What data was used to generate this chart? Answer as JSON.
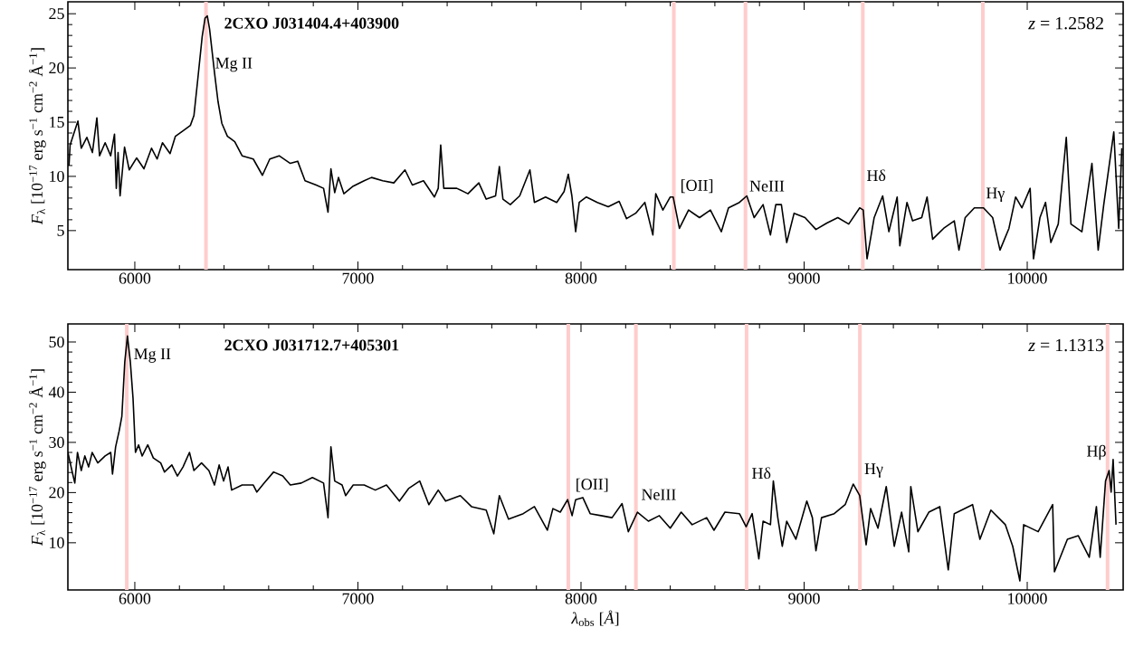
{
  "chart_data": [
    {
      "type": "line",
      "title": "2CXO J031404.4+403900",
      "ylabel": "*F*$_{λ}$ [10$^{−17}$ erg s$^{−1}$ cm$^{−2}$ Å$^{−1}$]",
      "color": "#000000",
      "x": [
        5705,
        5710,
        5745,
        5760,
        5785,
        5810,
        5830,
        5842,
        5867,
        5892,
        5909,
        5917,
        5925,
        5934,
        5954,
        5975,
        6008,
        6041,
        6075,
        6100,
        6124,
        6158,
        6182,
        6216,
        6249,
        6265,
        6282,
        6302,
        6315,
        6325,
        6335,
        6357,
        6373,
        6390,
        6415,
        6448,
        6481,
        6531,
        6572,
        6605,
        6647,
        6697,
        6730,
        6763,
        6813,
        6846,
        6866,
        6879,
        6896,
        6913,
        6937,
        6979,
        7028,
        7061,
        7111,
        7161,
        7211,
        7244,
        7294,
        7343,
        7360,
        7371,
        7385,
        7443,
        7493,
        7542,
        7575,
        7617,
        7634,
        7650,
        7683,
        7725,
        7771,
        7791,
        7841,
        7891,
        7924,
        7943,
        7959,
        7976,
        7992,
        8024,
        8073,
        8122,
        8171,
        8204,
        8245,
        8286,
        8322,
        8335,
        8367,
        8400,
        8413,
        8441,
        8482,
        8531,
        8580,
        8629,
        8661,
        8710,
        8743,
        8776,
        8816,
        8849,
        8873,
        8898,
        8922,
        8955,
        9004,
        9053,
        9102,
        9151,
        9200,
        9249,
        9265,
        9282,
        9314,
        9352,
        9380,
        9417,
        9429,
        9461,
        9486,
        9527,
        9551,
        9576,
        9625,
        9673,
        9694,
        9722,
        9763,
        9804,
        9845,
        9878,
        9918,
        9948,
        9976,
        10013,
        10028,
        10057,
        10082,
        10106,
        10139,
        10175,
        10196,
        10245,
        10290,
        10318,
        10343,
        10388,
        10410,
        10424
      ],
      "values": [
        11.0,
        12.9,
        15.1,
        12.6,
        13.6,
        12.2,
        15.4,
        11.9,
        13.1,
        11.9,
        13.9,
        8.9,
        12.2,
        8.2,
        12.7,
        10.6,
        11.7,
        10.7,
        12.6,
        11.6,
        13.1,
        12.1,
        13.7,
        14.2,
        14.7,
        15.6,
        18.9,
        22.9,
        24.6,
        24.8,
        23.6,
        19.6,
        16.9,
        14.9,
        13.7,
        13.2,
        11.9,
        11.6,
        10.1,
        11.6,
        11.9,
        11.2,
        11.4,
        9.6,
        9.2,
        8.9,
        6.7,
        10.7,
        8.5,
        9.9,
        8.4,
        9.1,
        9.6,
        9.9,
        9.6,
        9.4,
        10.6,
        9.2,
        9.6,
        8.1,
        8.9,
        12.9,
        8.9,
        8.9,
        8.4,
        9.4,
        7.9,
        8.2,
        10.9,
        7.9,
        7.4,
        8.2,
        10.6,
        7.6,
        8.1,
        7.6,
        8.6,
        10.2,
        8.2,
        4.9,
        7.6,
        8.1,
        7.6,
        7.2,
        7.7,
        6.1,
        6.6,
        7.6,
        4.6,
        8.4,
        6.9,
        8.1,
        8.1,
        5.2,
        6.9,
        6.2,
        6.9,
        4.9,
        7.1,
        7.6,
        8.2,
        6.2,
        7.4,
        4.6,
        7.4,
        7.4,
        3.9,
        6.6,
        6.2,
        5.1,
        5.7,
        6.2,
        5.6,
        7.1,
        6.9,
        2.4,
        6.2,
        8.2,
        4.9,
        8.1,
        3.6,
        7.6,
        5.9,
        6.2,
        8.1,
        4.2,
        5.2,
        5.9,
        3.2,
        6.2,
        7.1,
        7.1,
        6.2,
        3.2,
        5.2,
        8.1,
        7.1,
        8.9,
        2.4,
        6.2,
        7.6,
        3.9,
        5.6,
        13.6,
        5.6,
        4.9,
        11.2,
        3.2,
        7.4,
        14.1,
        5.2,
        12.6
      ],
      "xlim": [
        5700,
        10430
      ],
      "ylim": [
        1.4,
        26.1
      ],
      "xticks": [
        6000,
        7000,
        8000,
        9000,
        10000
      ],
      "yticks": [
        5,
        10,
        15,
        20,
        25
      ],
      "ref_lines": [
        {
          "axis": "x",
          "value": 6319,
          "color": "#ffcccc"
        },
        {
          "axis": "x",
          "value": 8416,
          "color": "#ffcccc"
        },
        {
          "axis": "x",
          "value": 8737,
          "color": "#ffcccc"
        },
        {
          "axis": "x",
          "value": 9263,
          "color": "#ffcccc"
        },
        {
          "axis": "x",
          "value": 9801,
          "color": "#ffcccc"
        }
      ],
      "annotations": [
        {
          "text": "Mg II",
          "x": 6355,
          "y": 20.3
        },
        {
          "text": "[OII]",
          "x": 8440,
          "y": 9.1
        },
        {
          "text": "NeIII",
          "x": 8750,
          "y": 9.1
        },
        {
          "text": "Hδ",
          "x": 9275,
          "y": 10.1
        },
        {
          "text": "Hγ",
          "x": 9810,
          "y": 8.3
        },
        "*z* = 1.2582"
      ]
    },
    {
      "type": "line",
      "title": "2CXO J031712.7+405301",
      "ylabel": "*F*$_{λ}$ [10$^{−17}$ erg s$^{−1}$ cm$^{−2}$ Å$^{−1}$]",
      "xlabel": "*λ*$_{obs}$ [*Å*]",
      "color": "#000000",
      "x": [
        5700,
        5718,
        5731,
        5743,
        5760,
        5776,
        5793,
        5809,
        5834,
        5867,
        5892,
        5900,
        5914,
        5930,
        5942,
        5955,
        5967,
        5980,
        5992,
        6003,
        6017,
        6033,
        6058,
        6083,
        6116,
        6133,
        6166,
        6191,
        6216,
        6245,
        6265,
        6299,
        6332,
        6357,
        6378,
        6398,
        6418,
        6434,
        6481,
        6531,
        6547,
        6580,
        6622,
        6663,
        6697,
        6746,
        6796,
        6846,
        6866,
        6879,
        6896,
        6929,
        6945,
        6979,
        7028,
        7078,
        7128,
        7186,
        7227,
        7277,
        7318,
        7360,
        7393,
        7459,
        7509,
        7575,
        7609,
        7634,
        7675,
        7741,
        7791,
        7849,
        7874,
        7907,
        7940,
        7960,
        7976,
        8008,
        8041,
        8090,
        8139,
        8184,
        8212,
        8253,
        8302,
        8351,
        8400,
        8449,
        8498,
        8563,
        8596,
        8645,
        8710,
        8740,
        8767,
        8797,
        8816,
        8849,
        8862,
        8882,
        8902,
        8922,
        8963,
        9012,
        9037,
        9053,
        9078,
        9135,
        9184,
        9220,
        9249,
        9278,
        9298,
        9331,
        9368,
        9404,
        9437,
        9469,
        9478,
        9510,
        9559,
        9608,
        9646,
        9673,
        9755,
        9788,
        9837,
        9902,
        9935,
        9967,
        9984,
        10049,
        10114,
        10122,
        10180,
        10229,
        10278,
        10310,
        10327,
        10351,
        10367,
        10376,
        10385,
        10398
      ],
      "values": [
        28.0,
        24.4,
        21.9,
        28.0,
        24.4,
        27.3,
        25.1,
        28.0,
        25.9,
        27.3,
        28.0,
        23.7,
        29.1,
        32.3,
        35.2,
        46.0,
        51.2,
        46.0,
        38.8,
        28.0,
        29.5,
        27.3,
        29.5,
        26.9,
        25.9,
        24.1,
        25.5,
        23.3,
        25.1,
        28.0,
        24.4,
        25.9,
        24.4,
        21.5,
        25.5,
        22.3,
        25.1,
        20.5,
        21.5,
        21.5,
        20.1,
        21.9,
        24.1,
        23.3,
        21.5,
        21.9,
        23.0,
        21.9,
        15.0,
        29.1,
        22.3,
        21.5,
        19.4,
        21.5,
        21.5,
        20.5,
        21.5,
        18.3,
        20.8,
        22.3,
        17.6,
        20.5,
        18.3,
        19.4,
        17.2,
        16.5,
        11.8,
        19.4,
        14.7,
        15.8,
        17.2,
        12.5,
        16.8,
        16.1,
        18.6,
        15.4,
        18.6,
        19.0,
        15.8,
        15.4,
        15.0,
        17.8,
        12.2,
        16.1,
        14.3,
        15.4,
        12.9,
        16.1,
        13.6,
        15.0,
        12.5,
        16.1,
        15.8,
        13.2,
        15.8,
        6.8,
        14.3,
        13.6,
        22.3,
        15.0,
        9.3,
        14.3,
        10.7,
        18.3,
        15.0,
        8.4,
        15.0,
        15.8,
        17.6,
        21.7,
        19.4,
        9.6,
        16.8,
        12.9,
        21.2,
        9.3,
        16.1,
        8.2,
        21.2,
        12.2,
        16.1,
        17.2,
        4.6,
        15.8,
        17.6,
        10.7,
        16.5,
        13.6,
        9.3,
        2.4,
        13.6,
        12.2,
        17.6,
        4.2,
        10.7,
        11.4,
        7.1,
        17.2,
        7.1,
        22.3,
        24.4,
        20.1,
        26.6,
        13.6
      ],
      "xlim": [
        5700,
        10430
      ],
      "ylim": [
        0.6,
        53.6
      ],
      "xticks": [
        6000,
        7000,
        8000,
        9000,
        10000
      ],
      "yticks": [
        10,
        20,
        30,
        40,
        50
      ],
      "ref_lines": [
        {
          "axis": "x",
          "value": 5964,
          "color": "#ffcccc"
        },
        {
          "axis": "x",
          "value": 7943,
          "color": "#ffcccc"
        },
        {
          "axis": "x",
          "value": 8246,
          "color": "#ffcccc"
        },
        {
          "axis": "x",
          "value": 8742,
          "color": "#ffcccc"
        },
        {
          "axis": "x",
          "value": 9250,
          "color": "#ffcccc"
        },
        {
          "axis": "x",
          "value": 10360,
          "color": "#ffcccc"
        }
      ],
      "annotations": [
        {
          "text": "Mg II",
          "x": 5990,
          "y": 47.3
        },
        {
          "text": "[OII]",
          "x": 7970,
          "y": 21.5
        },
        {
          "text": "NeIII",
          "x": 8265,
          "y": 19.6
        },
        {
          "text": "Hδ",
          "x": 8760,
          "y": 23.9
        },
        {
          "text": "Hγ",
          "x": 9265,
          "y": 24.4
        },
        {
          "text": "Hβ",
          "x": 10360,
          "y": 28.0
        },
        "*z* = 1.1313"
      ]
    }
  ]
}
